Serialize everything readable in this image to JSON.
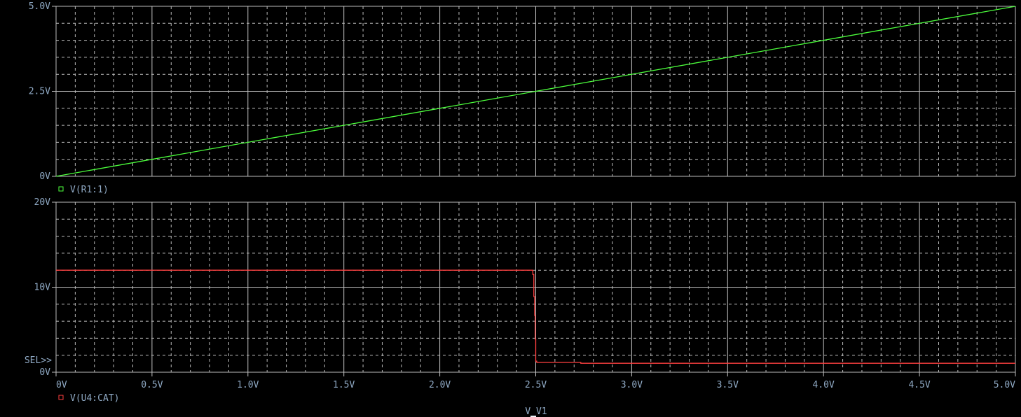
{
  "chart_data": [
    {
      "type": "line",
      "xlabel": "V_V1",
      "xlim": [
        0,
        5
      ],
      "ylim": [
        0,
        5
      ],
      "x_ticks": [
        "0V",
        "0.5V",
        "1.0V",
        "1.5V",
        "2.0V",
        "2.5V",
        "3.0V",
        "3.5V",
        "4.0V",
        "4.5V",
        "5.0V"
      ],
      "y_ticks": [
        "0V",
        "2.5V",
        "5.0V"
      ],
      "grid": true,
      "legend_position": "bottom-left",
      "series": [
        {
          "name": "V(R1:1)",
          "color": "#4cff3c",
          "x": [
            0,
            5
          ],
          "y": [
            0,
            5
          ]
        }
      ]
    },
    {
      "type": "line",
      "xlabel": "V_V1",
      "xlim": [
        0,
        5
      ],
      "ylim": [
        0,
        20
      ],
      "x_ticks": [
        "0V",
        "0.5V",
        "1.0V",
        "1.5V",
        "2.0V",
        "2.5V",
        "3.0V",
        "3.5V",
        "4.0V",
        "4.5V",
        "5.0V"
      ],
      "y_ticks": [
        "0V",
        "10V",
        "20V"
      ],
      "grid": true,
      "legend_position": "bottom-left",
      "selected_marker": "SEL>>",
      "series": [
        {
          "name": "V(U4:CAT)",
          "color": "#ff4040",
          "x": [
            0,
            2.485,
            2.485,
            2.49,
            2.49,
            2.494,
            2.494,
            2.497,
            2.497,
            2.5,
            2.5,
            2.505,
            2.505,
            2.735,
            2.735,
            5.0
          ],
          "y": [
            12.0,
            12.0,
            11.5,
            11.5,
            8.9,
            8.9,
            6.7,
            6.7,
            3.9,
            3.9,
            1.3,
            1.3,
            1.15,
            1.15,
            1.05,
            1.05
          ]
        }
      ]
    }
  ],
  "colors": {
    "background": "#000000",
    "grid": "#bdbdbd",
    "text": "#8fa9c4"
  }
}
